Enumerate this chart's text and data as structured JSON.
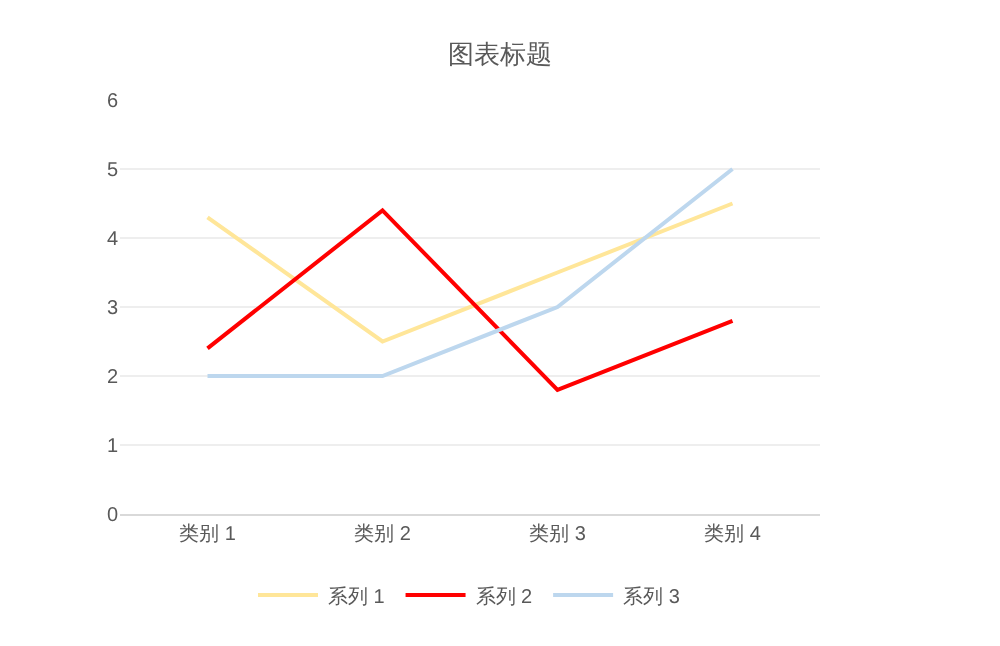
{
  "chart_data": {
    "type": "line",
    "title": "图表标题",
    "categories": [
      "类别 1",
      "类别 2",
      "类别 3",
      "类别 4"
    ],
    "series": [
      {
        "name": "系列 1",
        "color": "#ffe699",
        "values": [
          4.3,
          2.5,
          3.5,
          4.5
        ]
      },
      {
        "name": "系列 2",
        "color": "#ff0000",
        "values": [
          2.4,
          4.4,
          1.8,
          2.8
        ]
      },
      {
        "name": "系列 3",
        "color": "#bdd7ee",
        "values": [
          2,
          2,
          3,
          5
        ]
      }
    ],
    "ylim": [
      0,
      6
    ],
    "yticks": [
      0,
      1,
      2,
      3,
      4,
      5,
      6
    ],
    "grid": "y",
    "legend": "bottom",
    "marker": "none",
    "line_style": "solid"
  }
}
